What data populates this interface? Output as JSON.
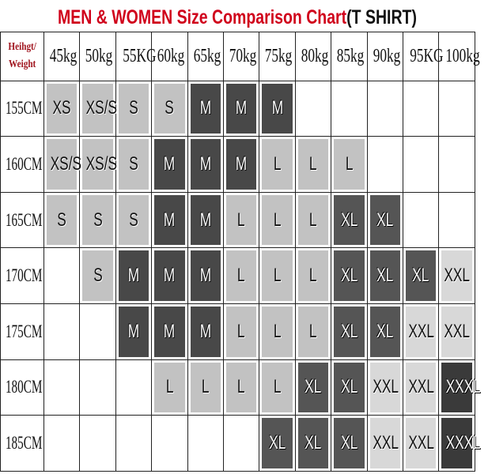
{
  "title": {
    "part1": "MEN & WOMEN Size Comparison Chart",
    "part2": "(T SHIRT)"
  },
  "corner": {
    "line1": "Heihgt/",
    "line2": "Weight"
  },
  "weights": [
    "45kg",
    "50kg",
    "55KG",
    "60kg",
    "65kg",
    "70kg",
    "75kg",
    "80kg",
    "85kg",
    "90kg",
    "95KG",
    "100kg"
  ],
  "rows": [
    {
      "height": "155CM",
      "sizes": [
        "XS",
        "XS/S",
        "S",
        "S",
        "M",
        "M",
        "M",
        "",
        "",
        "",
        "",
        ""
      ]
    },
    {
      "height": "160CM",
      "sizes": [
        "XS/S",
        "XS/S",
        "S",
        "M",
        "M",
        "M",
        "L",
        "L",
        "L",
        "",
        "",
        ""
      ]
    },
    {
      "height": "165CM",
      "sizes": [
        "S",
        "S",
        "S",
        "M",
        "M",
        "L",
        "L",
        "L",
        "XL",
        "XL",
        "",
        ""
      ]
    },
    {
      "height": "170CM",
      "sizes": [
        "",
        "S",
        "M",
        "M",
        "M",
        "L",
        "L",
        "L",
        "XL",
        "XL",
        "XL",
        "XXL"
      ]
    },
    {
      "height": "175CM",
      "sizes": [
        "",
        "",
        "M",
        "M",
        "M",
        "L",
        "L",
        "L",
        "XL",
        "XL",
        "XXL",
        "XXL"
      ]
    },
    {
      "height": "180CM",
      "sizes": [
        "",
        "",
        "",
        "L",
        "L",
        "L",
        "L",
        "XL",
        "XL",
        "XXL",
        "XXL",
        "XXXL"
      ]
    },
    {
      "height": "185CM",
      "sizes": [
        "",
        "",
        "",
        "",
        "",
        "",
        "XL",
        "XL",
        "XL",
        "XXL",
        "XXL",
        "XXXL"
      ]
    }
  ],
  "colors": {
    "XS": {
      "bg": "#c2c2c2",
      "fg": "#111111"
    },
    "XS/S": {
      "bg": "#c2c2c2",
      "fg": "#111111"
    },
    "S": {
      "bg": "#c2c2c2",
      "fg": "#111111"
    },
    "M": {
      "bg": "#484848",
      "fg": "#ffffff"
    },
    "L": {
      "bg": "#c2c2c2",
      "fg": "#111111"
    },
    "XL": {
      "bg": "#555555",
      "fg": "#ffffff"
    },
    "XXL": {
      "bg": "#d8d8d8",
      "fg": "#111111"
    },
    "XXXL": {
      "bg": "#3a3a3a",
      "fg": "#ffffff"
    },
    "title_accent": "#d0021b"
  }
}
